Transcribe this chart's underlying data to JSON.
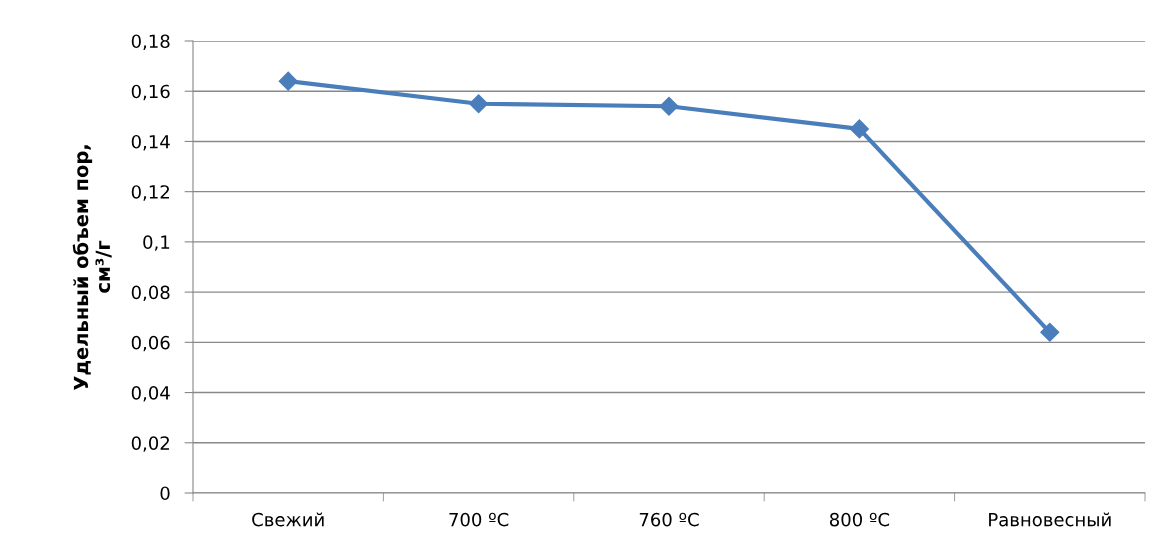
{
  "chart_data": {
    "type": "line",
    "categories": [
      "Свежий",
      "700 ºC",
      "760 ºC",
      "800 ºC",
      "Равновесный"
    ],
    "series": [
      {
        "color": "#4a7ebb",
        "values": [
          0.164,
          0.155,
          0.154,
          0.145,
          0.064
        ]
      }
    ],
    "ylabel": "Удельный объем пор,\nсм³/г",
    "ylim": [
      0,
      0.18
    ],
    "yticks": [
      0,
      {
        "value": 0.02,
        "label": "0,02"
      },
      {
        "value": 0.04,
        "label": "0,04"
      },
      {
        "value": 0.06,
        "label": "0,06"
      },
      {
        "value": 0.08,
        "label": "0,08"
      },
      {
        "value": 0.1,
        "label": "0,1"
      },
      {
        "value": 0.12,
        "label": "0,12"
      },
      {
        "value": 0.14,
        "label": "0,14"
      },
      {
        "value": 0.16,
        "label": "0,16"
      },
      {
        "value": 0.18,
        "label": "0,18"
      }
    ],
    "grid": "y",
    "legend": false,
    "marker": "diamond",
    "line_style": "solid"
  }
}
